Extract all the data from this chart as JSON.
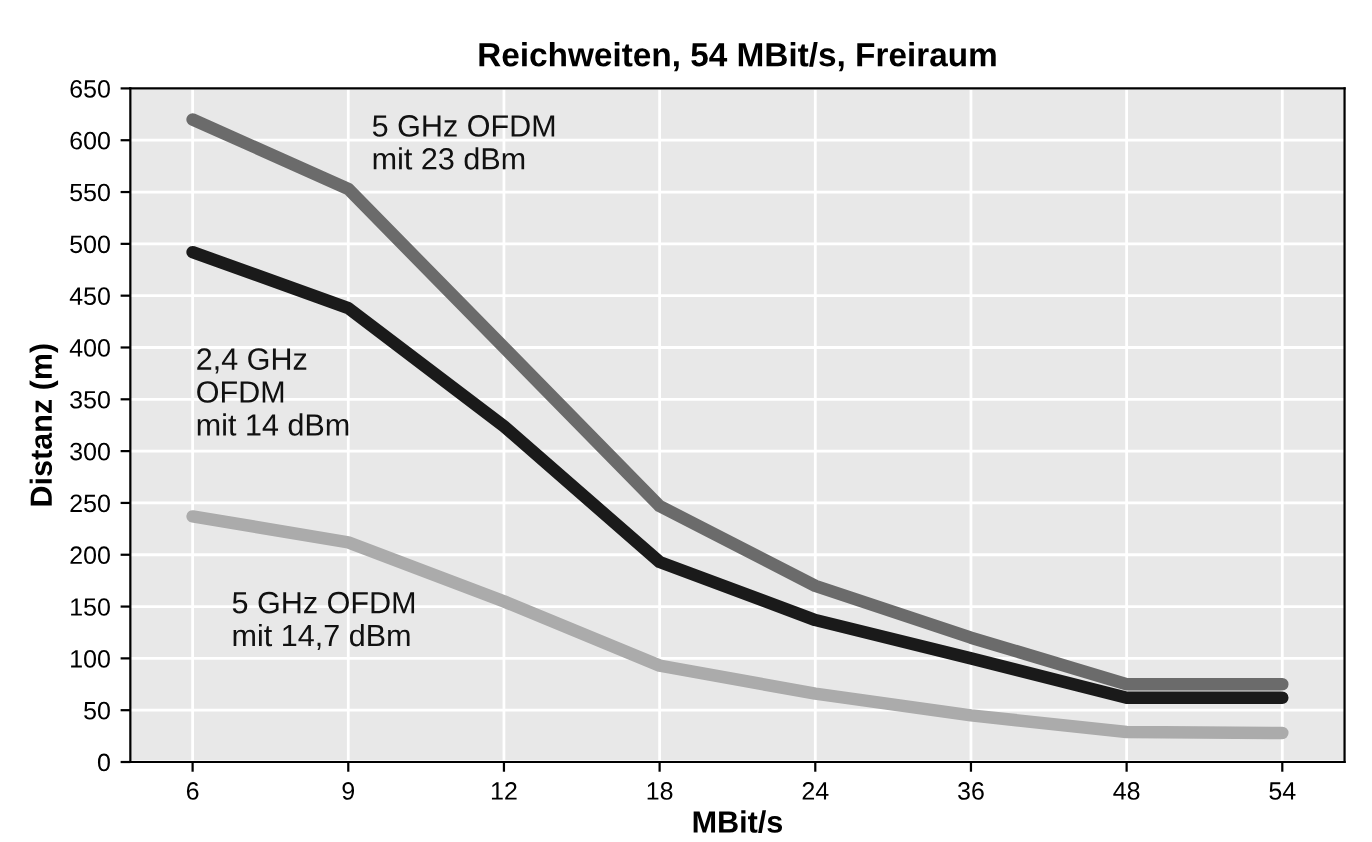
{
  "chart_data": {
    "type": "line",
    "title": "Reichweiten, 54 MBit/s, Freiraum",
    "xlabel": "MBit/s",
    "ylabel": "Distanz (m)",
    "categories": [
      "6",
      "9",
      "12",
      "18",
      "24",
      "36",
      "48",
      "54"
    ],
    "series": [
      {
        "name": "5 GHz OFDM\nmit 23 dBm",
        "color": "#6b6b6b",
        "values": [
          620,
          553,
          400,
          247,
          170,
          120,
          75,
          75
        ]
      },
      {
        "name": "2,4 GHz\nOFDM\nmit 14 dBm",
        "color": "#1a1a1a",
        "values": [
          492,
          438,
          324,
          193,
          137,
          100,
          62,
          62
        ]
      },
      {
        "name": "5 GHz OFDM\nmit 14,7 dBm",
        "color": "#ababab",
        "values": [
          237,
          212,
          155,
          93,
          66,
          45,
          29,
          28
        ]
      }
    ],
    "ylim": [
      0,
      650
    ],
    "yticks": [
      0,
      50,
      100,
      150,
      200,
      250,
      300,
      350,
      400,
      450,
      500,
      550,
      600,
      650
    ],
    "grid": true,
    "legend": false,
    "marker": "none",
    "line_style": "solid"
  }
}
